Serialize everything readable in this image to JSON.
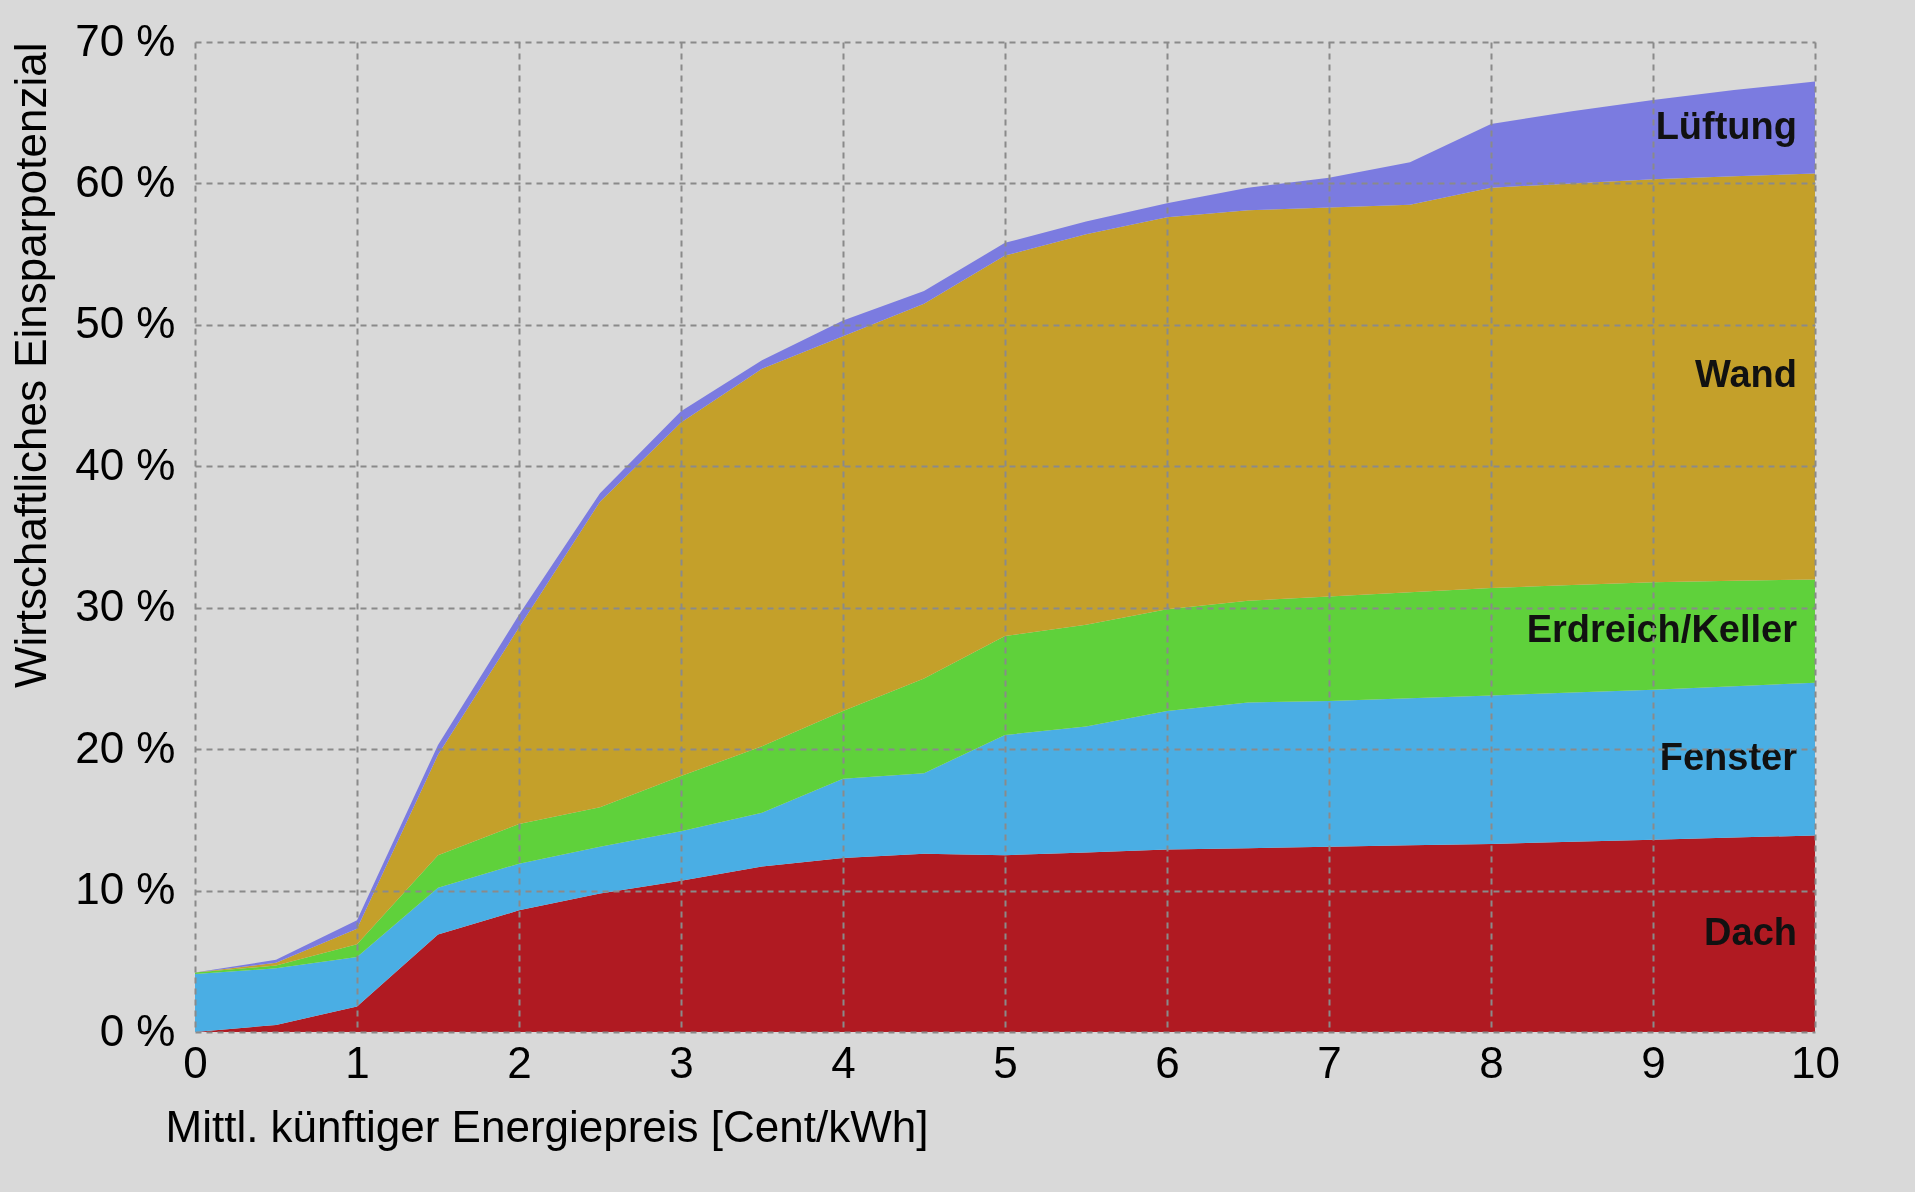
{
  "chart_data": {
    "type": "area",
    "stacked": true,
    "xlabel": "Mittl. künftiger Energiepreis [Cent/kWh]",
    "ylabel": "Wirtschaftliches Einsparpotenzial",
    "x": [
      0,
      0.5,
      1,
      1.5,
      2,
      2.5,
      3,
      3.5,
      4,
      4.5,
      5,
      5.5,
      6,
      6.5,
      7,
      7.5,
      8,
      8.5,
      9,
      9.5,
      10
    ],
    "series": [
      {
        "name": "Dach",
        "color": "#b01a22",
        "values": [
          0,
          0.5,
          1.8,
          6.9,
          8.6,
          9.8,
          10.7,
          11.7,
          12.3,
          12.6,
          12.5,
          12.7,
          12.9,
          13.0,
          13.1,
          13.2,
          13.3,
          13.45,
          13.6,
          13.75,
          13.9
        ]
      },
      {
        "name": "Fenster",
        "color": "#4aaee4",
        "values": [
          4.1,
          4.0,
          3.5,
          3.3,
          3.3,
          3.3,
          3.5,
          3.8,
          5.6,
          5.7,
          8.5,
          8.9,
          9.8,
          10.3,
          10.3,
          10.4,
          10.5,
          10.55,
          10.6,
          10.7,
          10.8
        ]
      },
      {
        "name": "Erdreich/Keller",
        "color": "#5fd13b",
        "values": [
          0.1,
          0.2,
          0.9,
          2.3,
          2.8,
          2.8,
          3.9,
          4.7,
          4.8,
          6.7,
          7.0,
          7.2,
          7.2,
          7.2,
          7.4,
          7.5,
          7.6,
          7.6,
          7.6,
          7.45,
          7.3
        ]
      },
      {
        "name": "Wand",
        "color": "#c4a02a",
        "values": [
          0,
          0.2,
          1.1,
          7.1,
          13.9,
          21.6,
          25.0,
          26.7,
          26.5,
          26.5,
          26.9,
          27.6,
          27.7,
          27.6,
          27.5,
          27.4,
          28.3,
          28.4,
          28.5,
          28.6,
          28.7
        ]
      },
      {
        "name": "Lüftung",
        "color": "#7b7be0",
        "values": [
          0,
          0.2,
          0.6,
          0.7,
          0.9,
          0.6,
          0.8,
          0.6,
          1.1,
          0.9,
          0.9,
          0.9,
          1.0,
          1.6,
          2.1,
          3.0,
          4.5,
          5.1,
          5.6,
          6.1,
          6.5
        ]
      }
    ],
    "xlim": [
      0,
      10
    ],
    "xticks": [
      0,
      1,
      2,
      3,
      4,
      5,
      6,
      7,
      8,
      9,
      10
    ],
    "ylim": [
      0,
      70
    ],
    "yticks": [
      {
        "value": 0,
        "label": "0 %"
      },
      {
        "value": 10,
        "label": "10 %"
      },
      {
        "value": 20,
        "label": "20 %"
      },
      {
        "value": 30,
        "label": "30 %"
      },
      {
        "value": 40,
        "label": "40 %"
      },
      {
        "value": 50,
        "label": "50 %"
      },
      {
        "value": 60,
        "label": "60 %"
      },
      {
        "value": 70,
        "label": "70 %"
      }
    ],
    "grid": true,
    "legend": false
  }
}
